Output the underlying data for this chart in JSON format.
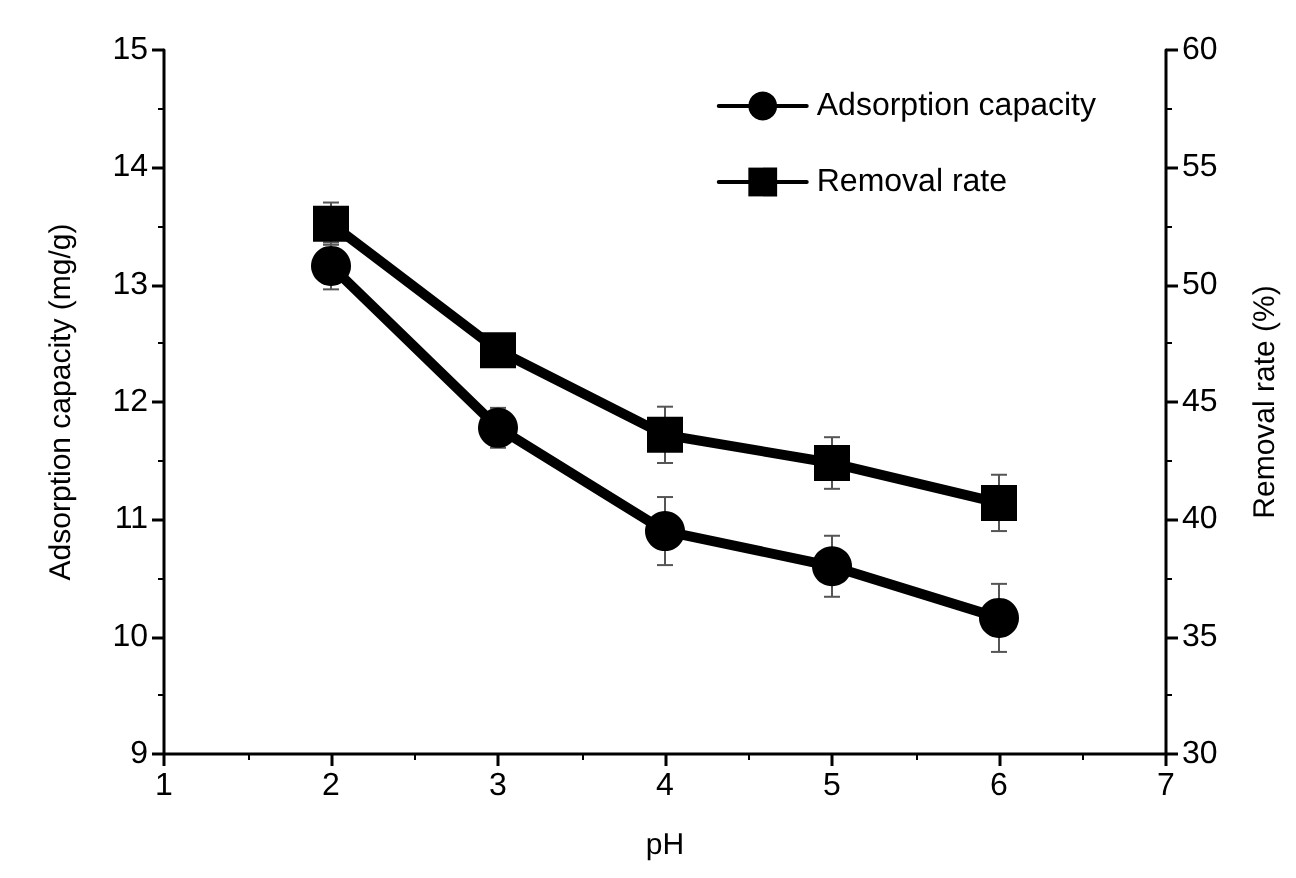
{
  "chart_data": {
    "type": "line",
    "xlabel": "pH",
    "ylabel": "Adsorption capacity (mg/g)",
    "y2label": "Removal rate (%)",
    "x": [
      2,
      3,
      4,
      5,
      6
    ],
    "series": [
      {
        "name": "Adsorption capacity",
        "color": "#000000",
        "marker": "circle",
        "values": [
          13.16,
          11.78,
          10.9,
          10.6,
          10.16
        ],
        "errors": [
          0.2,
          0.17,
          0.29,
          0.26,
          0.29
        ]
      },
      {
        "name": "Removal rate",
        "color": "#000000",
        "marker": "square",
        "axis": "y2",
        "values": [
          52.6,
          47.2,
          43.6,
          42.4,
          40.7
        ],
        "errors": [
          0.9,
          0.3,
          1.2,
          1.1,
          1.2
        ]
      }
    ],
    "xlim": [
      1,
      7
    ],
    "xticks": [
      1,
      2,
      3,
      4,
      5,
      6,
      7
    ],
    "ylim": [
      9,
      15
    ],
    "yticks": [
      9,
      10,
      11,
      12,
      13,
      14,
      15
    ],
    "y2lim": [
      30,
      60
    ],
    "y2ticks": [
      30,
      35,
      40,
      45,
      50,
      55,
      60
    ],
    "grid": false,
    "legend": "top right",
    "line_style": "solid"
  }
}
